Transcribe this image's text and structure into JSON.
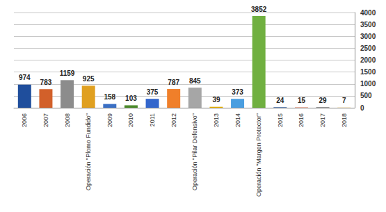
{
  "chart_data": {
    "type": "bar",
    "categories": [
      "2006",
      "2007",
      "2008",
      "Operación \"Plomo Fundido\"",
      "2009",
      "2010",
      "2011",
      "2012",
      "Operación \"Pilar Defensivo\"",
      "2013",
      "2014",
      "Operación \"Margen Protector\"",
      "2015",
      "2016",
      "2017",
      "2018"
    ],
    "values": [
      974,
      783,
      1159,
      925,
      158,
      103,
      375,
      787,
      845,
      39,
      373,
      3852,
      24,
      15,
      29,
      7
    ],
    "colors": [
      "#1f4e9c",
      "#d2602a",
      "#8c8c8c",
      "#e0a020",
      "#3a6fc4",
      "#4a8a2a",
      "#3366cc",
      "#f07f2a",
      "#a6a6a6",
      "#e8b000",
      "#4a9ee0",
      "#70b040",
      "#4a6fa8",
      "#d97050",
      "#999999",
      "#e0b040"
    ],
    "ylim": [
      0,
      4000
    ],
    "yticks": [
      0,
      500,
      1000,
      1500,
      2000,
      2500,
      3000,
      3500,
      4000
    ],
    "grid": true,
    "data_labels": true
  }
}
